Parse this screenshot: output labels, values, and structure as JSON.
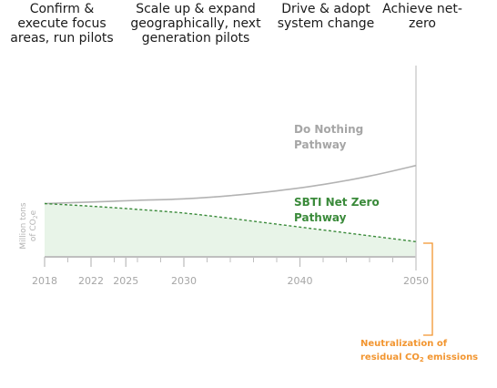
{
  "phases": [
    {
      "label": "Confirm &\nexecute focus\nareas, run pilots"
    },
    {
      "label": "Scale up & expand\ngeographically, next\ngeneration pilots"
    },
    {
      "label": "Drive & adopt\nsystem change"
    },
    {
      "label": "Achieve net-\nzero"
    }
  ],
  "chart_data": {
    "type": "line",
    "ylabel": [
      "Million tons",
      "of CO",
      "2",
      "e"
    ],
    "x_ticks": [
      2018,
      2022,
      2025,
      2030,
      2040,
      2050
    ],
    "x_range": [
      2018,
      2050
    ],
    "series": [
      {
        "name": "Do Nothing Pathway",
        "name_lines": [
          "Do Nothing",
          "Pathway"
        ],
        "color": "#b3b3b3",
        "x": [
          2018,
          2022,
          2026,
          2030,
          2034,
          2038,
          2042,
          2046,
          2050
        ],
        "y": [
          100,
          103,
          106,
          109,
          115,
          124,
          136,
          152,
          172
        ]
      },
      {
        "name": "SBTI Net Zero Pathway",
        "name_lines": [
          "SBTI Net Zero",
          "Pathway"
        ],
        "color": "#3a8a3a",
        "x": [
          2018,
          2022,
          2026,
          2030,
          2034,
          2038,
          2042,
          2046,
          2050
        ],
        "y": [
          100,
          95,
          89,
          82,
          72,
          61,
          50,
          39,
          28
        ]
      }
    ],
    "annotation": {
      "lines": [
        "Neutralization of",
        "residual CO",
        "2",
        " emissions"
      ]
    },
    "colors": {
      "axis": "#bfbfbf",
      "fill": "#e8f4e8",
      "annotation": "#f2952f"
    }
  }
}
